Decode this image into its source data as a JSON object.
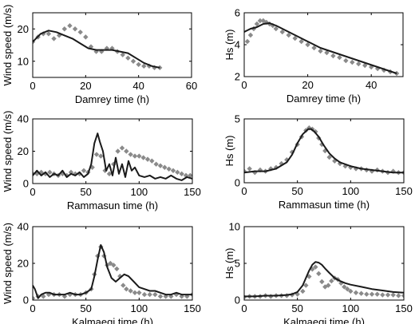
{
  "chart_data": [
    {
      "type": "line",
      "xlabel": "Damrey time (h)",
      "ylabel": "Wind speed (m/s)",
      "xlim": [
        0,
        60
      ],
      "ylim": [
        5,
        25
      ],
      "xticks": [
        0,
        20,
        40,
        60
      ],
      "yticks": [
        10,
        20
      ],
      "grid": false,
      "series": [
        {
          "kind": "observed",
          "color": "#8a8a8a",
          "x": [
            0,
            2,
            4,
            6,
            8,
            10,
            12,
            14,
            16,
            18,
            20,
            22,
            24,
            26,
            28,
            30,
            32,
            34,
            36,
            38,
            40,
            42,
            44,
            46,
            48
          ],
          "y": [
            16,
            17.5,
            18.5,
            18.5,
            17,
            18,
            20,
            21,
            20,
            19,
            17.5,
            14.5,
            13,
            13,
            14,
            14,
            13,
            12,
            11,
            10,
            9,
            8.5,
            8.5,
            8,
            8
          ]
        },
        {
          "kind": "model",
          "color": "#1a1a1a",
          "x": [
            0,
            3,
            6,
            9,
            12,
            15,
            18,
            21,
            24,
            27,
            30,
            33,
            36,
            39,
            42,
            45,
            48
          ],
          "y": [
            16,
            18.5,
            19.5,
            19,
            18,
            17,
            15.5,
            14,
            13.5,
            13.5,
            13.5,
            13,
            12.5,
            11,
            9.5,
            8.5,
            8
          ]
        }
      ]
    },
    {
      "type": "line",
      "xlabel": "Damrey time (h)",
      "ylabel": "Hs (m)",
      "xlim": [
        0,
        50
      ],
      "ylim": [
        2,
        6
      ],
      "xticks": [
        0,
        20,
        40
      ],
      "yticks": [
        2,
        4,
        6
      ],
      "grid": false,
      "series": [
        {
          "kind": "observed",
          "color": "#8a8a8a",
          "x": [
            1,
            2,
            3,
            4,
            5,
            6,
            7,
            8,
            9,
            10,
            12,
            14,
            16,
            18,
            20,
            22,
            24,
            26,
            28,
            30,
            32,
            34,
            36,
            38,
            40,
            42,
            44,
            46,
            48
          ],
          "y": [
            4.2,
            4.6,
            5.0,
            5.3,
            5.5,
            5.5,
            5.4,
            5.3,
            5.2,
            5.0,
            4.8,
            4.6,
            4.4,
            4.2,
            4.0,
            3.8,
            3.6,
            3.5,
            3.3,
            3.2,
            3.0,
            2.9,
            2.8,
            2.7,
            2.6,
            2.5,
            2.4,
            2.3,
            2.2
          ]
        },
        {
          "kind": "model",
          "color": "#1a1a1a",
          "x": [
            0,
            2,
            4,
            6,
            8,
            10,
            12,
            15,
            18,
            21,
            24,
            27,
            30,
            33,
            36,
            39,
            42,
            45,
            48
          ],
          "y": [
            4.8,
            5.0,
            5.1,
            5.3,
            5.35,
            5.2,
            5.0,
            4.7,
            4.4,
            4.1,
            3.8,
            3.6,
            3.4,
            3.2,
            3.0,
            2.8,
            2.6,
            2.4,
            2.2
          ]
        }
      ]
    },
    {
      "type": "line",
      "xlabel": "Rammasun time (h)",
      "ylabel": "Wind speed (m/s)",
      "xlim": [
        0,
        150
      ],
      "ylim": [
        0,
        40
      ],
      "xticks": [
        0,
        50,
        100,
        150
      ],
      "yticks": [
        0,
        20,
        40
      ],
      "grid": false,
      "series": [
        {
          "kind": "observed",
          "color": "#8a8a8a",
          "x": [
            0,
            4,
            8,
            12,
            16,
            20,
            24,
            28,
            32,
            36,
            40,
            44,
            48,
            52,
            56,
            60,
            64,
            68,
            72,
            76,
            80,
            84,
            88,
            92,
            96,
            100,
            104,
            108,
            112,
            116,
            120,
            124,
            128,
            132,
            136,
            140,
            144,
            148
          ],
          "y": [
            6,
            6,
            7,
            6,
            7,
            6,
            5,
            6,
            5,
            7,
            6,
            6,
            8,
            7,
            10,
            18,
            17,
            8,
            6,
            12,
            20,
            22,
            20,
            18,
            17,
            17,
            16,
            15,
            14,
            12,
            11,
            10,
            9,
            8,
            7,
            6,
            5,
            5
          ]
        },
        {
          "kind": "model",
          "color": "#1a1a1a",
          "x": [
            0,
            4,
            8,
            12,
            16,
            20,
            24,
            28,
            32,
            36,
            40,
            44,
            48,
            52,
            55,
            58,
            61,
            63,
            66,
            69,
            72,
            75,
            78,
            81,
            84,
            87,
            90,
            93,
            96,
            100,
            105,
            110,
            115,
            120,
            125,
            130,
            135,
            140,
            145,
            150
          ],
          "y": [
            5,
            8,
            5,
            7,
            4,
            6,
            5,
            8,
            4,
            6,
            5,
            7,
            4,
            6,
            12,
            25,
            31,
            26,
            20,
            8,
            12,
            5,
            16,
            6,
            12,
            4,
            14,
            8,
            10,
            5,
            4,
            5,
            3,
            4,
            3,
            5,
            3,
            2,
            4,
            3
          ]
        }
      ]
    },
    {
      "type": "line",
      "xlabel": "Rammasun time (h)",
      "ylabel": "Hs (m)",
      "xlim": [
        0,
        150
      ],
      "ylim": [
        0,
        5
      ],
      "xticks": [
        0,
        50,
        100,
        150
      ],
      "yticks": [
        0,
        5
      ],
      "grid": false,
      "series": [
        {
          "kind": "observed",
          "color": "#8a8a8a",
          "x": [
            0,
            5,
            10,
            15,
            20,
            25,
            30,
            35,
            40,
            45,
            50,
            54,
            58,
            61,
            64,
            67,
            70,
            73,
            76,
            80,
            85,
            90,
            95,
            100,
            105,
            110,
            115,
            120,
            125,
            130,
            135,
            140,
            145,
            150
          ],
          "y": [
            0.9,
            1.1,
            0.8,
            1.0,
            0.9,
            1.1,
            1.2,
            1.5,
            1.8,
            2.4,
            3.0,
            3.6,
            4.1,
            4.3,
            4.2,
            4.0,
            3.5,
            3.0,
            2.5,
            2.0,
            1.7,
            1.5,
            1.3,
            1.2,
            1.1,
            1.1,
            1.0,
            0.9,
            1.0,
            0.9,
            0.8,
            0.9,
            0.8,
            0.8
          ]
        },
        {
          "kind": "model",
          "color": "#1a1a1a",
          "x": [
            0,
            10,
            20,
            30,
            40,
            45,
            50,
            55,
            60,
            63,
            66,
            70,
            75,
            80,
            85,
            90,
            100,
            110,
            120,
            130,
            140,
            150
          ],
          "y": [
            0.8,
            0.9,
            0.9,
            1.1,
            1.6,
            2.2,
            3.1,
            3.8,
            4.2,
            4.2,
            4.0,
            3.6,
            2.9,
            2.3,
            1.9,
            1.6,
            1.3,
            1.1,
            1.0,
            0.9,
            0.8,
            0.8
          ]
        }
      ]
    },
    {
      "type": "line",
      "xlabel": "Kalmaegi time (h)",
      "ylabel": "Wind speed (m/s)",
      "xlim": [
        0,
        150
      ],
      "ylim": [
        0,
        40
      ],
      "xticks": [
        0,
        50,
        100,
        150
      ],
      "yticks": [
        0,
        20,
        40
      ],
      "grid": false,
      "series": [
        {
          "kind": "observed",
          "color": "#8a8a8a",
          "x": [
            0,
            5,
            10,
            15,
            20,
            25,
            30,
            35,
            40,
            45,
            50,
            55,
            58,
            61,
            64,
            67,
            70,
            73,
            76,
            79,
            82,
            85,
            88,
            92,
            96,
            100,
            105,
            110,
            115,
            120,
            125,
            130,
            135,
            140,
            145,
            150
          ],
          "y": [
            1,
            2,
            2,
            3,
            3,
            3,
            2,
            3,
            3,
            3,
            4,
            6,
            14,
            24,
            29,
            24,
            19,
            20,
            19,
            17,
            13,
            8,
            6,
            5,
            4,
            4,
            3,
            3,
            3,
            2,
            2,
            2,
            3,
            2,
            2,
            3
          ]
        },
        {
          "kind": "model",
          "color": "#1a1a1a",
          "x": [
            0,
            2,
            5,
            8,
            12,
            16,
            20,
            25,
            30,
            35,
            40,
            45,
            50,
            55,
            58,
            61,
            64,
            67,
            70,
            74,
            78,
            82,
            86,
            90,
            95,
            100,
            105,
            110,
            115,
            120,
            125,
            130,
            135,
            140,
            145,
            150
          ],
          "y": [
            8,
            6,
            1,
            3,
            4,
            4,
            3,
            3,
            3,
            4,
            3,
            3,
            4,
            6,
            13,
            22,
            30,
            26,
            18,
            12,
            10,
            12,
            14,
            13,
            10,
            7,
            6,
            5,
            5,
            4,
            3,
            3,
            4,
            3,
            3,
            3
          ]
        }
      ]
    },
    {
      "type": "line",
      "xlabel": "Kalmaegi time (h)",
      "ylabel": "Hs (m)",
      "xlim": [
        0,
        150
      ],
      "ylim": [
        0,
        10
      ],
      "xticks": [
        0,
        50,
        100,
        150
      ],
      "yticks": [
        0,
        5,
        10
      ],
      "grid": false,
      "series": [
        {
          "kind": "observed",
          "color": "#8a8a8a",
          "x": [
            0,
            5,
            10,
            15,
            20,
            25,
            30,
            35,
            40,
            45,
            50,
            55,
            58,
            61,
            64,
            67,
            70,
            73,
            76,
            79,
            82,
            85,
            88,
            91,
            94,
            97,
            100,
            105,
            110,
            115,
            120,
            125,
            130,
            135,
            140,
            145,
            150
          ],
          "y": [
            0.4,
            0.5,
            0.5,
            0.5,
            0.6,
            0.5,
            0.6,
            0.6,
            0.6,
            0.7,
            0.8,
            1.2,
            2.0,
            3.2,
            4.2,
            4.5,
            3.6,
            2.5,
            1.8,
            2.0,
            2.6,
            3.0,
            2.8,
            2.3,
            1.8,
            1.5,
            1.2,
            1.0,
            0.9,
            0.8,
            0.8,
            0.8,
            0.7,
            0.7,
            0.7,
            0.6,
            0.6
          ]
        },
        {
          "kind": "model",
          "color": "#1a1a1a",
          "x": [
            0,
            10,
            20,
            30,
            40,
            45,
            50,
            55,
            58,
            61,
            64,
            67,
            70,
            73,
            76,
            80,
            85,
            90,
            95,
            100,
            110,
            120,
            130,
            140,
            150
          ],
          "y": [
            0.5,
            0.5,
            0.6,
            0.6,
            0.7,
            0.8,
            1.1,
            2.0,
            3.0,
            4.0,
            4.8,
            5.2,
            5.1,
            4.8,
            4.3,
            3.7,
            3.0,
            2.6,
            2.3,
            2.1,
            1.8,
            1.5,
            1.3,
            1.1,
            1.0
          ]
        }
      ]
    }
  ]
}
